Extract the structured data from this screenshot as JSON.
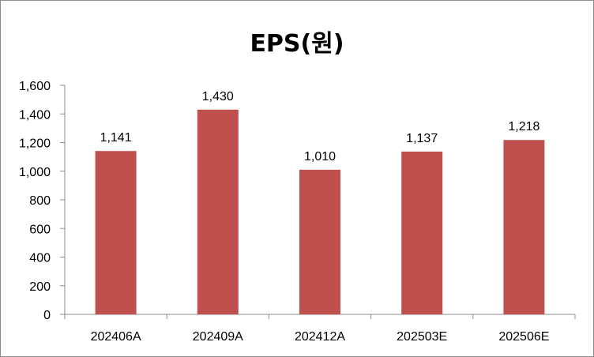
{
  "chart_data": {
    "type": "bar",
    "title": "EPS(원)",
    "xlabel": "",
    "ylabel": "",
    "categories": [
      "202406A",
      "202409A",
      "202412A",
      "202503E",
      "202506E"
    ],
    "values": [
      1141,
      1430,
      1010,
      1137,
      1218
    ],
    "value_labels": [
      "1,141",
      "1,430",
      "1,010",
      "1,137",
      "1,218"
    ],
    "ylim": [
      0,
      1600
    ],
    "yticks": [
      0,
      200,
      400,
      600,
      800,
      1000,
      1200,
      1400,
      1600
    ],
    "ytick_labels": [
      "0",
      "200",
      "400",
      "600",
      "800",
      "1,000",
      "1,200",
      "1,400",
      "1,600"
    ],
    "grid": false,
    "legend": "none",
    "bar_color": "#c0504d"
  }
}
